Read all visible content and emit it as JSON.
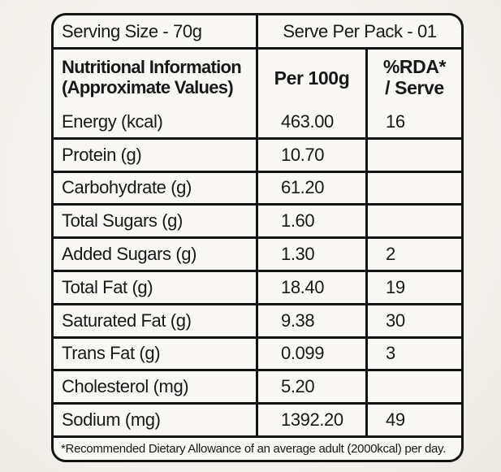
{
  "top_row": {
    "serving_size": "Serving Size - 70g",
    "serve_per_pack": "Serve Per Pack - 01"
  },
  "header": {
    "col1_line1": "Nutritional Information",
    "col1_line2": "(Approximate Values)",
    "col2": "Per 100g",
    "col3_line1": "%RDA*",
    "col3_line2": "/ Serve"
  },
  "rows": [
    {
      "label": "Energy (kcal)",
      "per100g": "463.00",
      "rda": "16"
    },
    {
      "label": "Protein (g)",
      "per100g": "10.70",
      "rda": ""
    },
    {
      "label": "Carbohydrate (g)",
      "per100g": "61.20",
      "rda": ""
    },
    {
      "label": "Total Sugars (g)",
      "per100g": "1.60",
      "rda": ""
    },
    {
      "label": "Added Sugars (g)",
      "per100g": "1.30",
      "rda": "2"
    },
    {
      "label": "Total Fat (g)",
      "per100g": "18.40",
      "rda": "19"
    },
    {
      "label": "Saturated Fat (g)",
      "per100g": "9.38",
      "rda": "30"
    },
    {
      "label": "Trans Fat (g)",
      "per100g": "0.099",
      "rda": "3"
    },
    {
      "label": "Cholesterol (mg)",
      "per100g": "5.20",
      "rda": ""
    },
    {
      "label": "Sodium (mg)",
      "per100g": "1392.20",
      "rda": "49"
    }
  ],
  "footer": "*Recommended Dietary Allowance of an average adult (2000kcal) per day.",
  "colors": {
    "page_background": "#f5f2ee",
    "cell_background": "#faf8f5",
    "border": "#141414",
    "text": "#181818"
  }
}
